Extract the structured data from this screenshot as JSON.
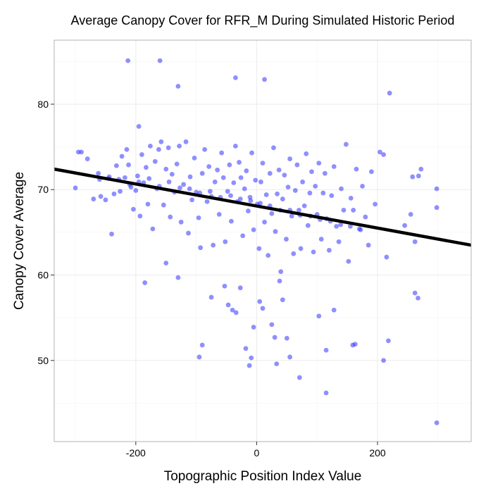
{
  "chart_data": {
    "type": "scatter",
    "title": "Average Canopy Cover for RFR_M During Simulated Historic Period",
    "xlabel": "Topographic Position Index Value",
    "ylabel": "Canopy Cover Average",
    "xlim": [
      -335,
      355
    ],
    "ylim": [
      40.5,
      87.5
    ],
    "x_ticks": [
      -200,
      0,
      200
    ],
    "y_ticks": [
      50,
      60,
      70,
      80
    ],
    "grid": true,
    "point_color": "#3333ff",
    "line_color": "#000000",
    "trendline": {
      "x": [
        -335,
        355
      ],
      "y": [
        72.4,
        63.5
      ]
    },
    "points": [
      [
        -213,
        85.1
      ],
      [
        -160,
        85.1
      ],
      [
        -35,
        83.1
      ],
      [
        13,
        82.9
      ],
      [
        -130,
        82.1
      ],
      [
        220,
        81.3
      ],
      [
        -195,
        77.4
      ],
      [
        -300,
        70.2
      ],
      [
        -295,
        74.4
      ],
      [
        -290,
        74.4
      ],
      [
        -280,
        73.6
      ],
      [
        -270,
        68.9
      ],
      [
        -262,
        71.9
      ],
      [
        -258,
        69.2
      ],
      [
        -250,
        68.8
      ],
      [
        -245,
        71.3
      ],
      [
        -240,
        64.8
      ],
      [
        -236,
        69.5
      ],
      [
        -232,
        72.8
      ],
      [
        -228,
        71.2
      ],
      [
        -223,
        73.9
      ],
      [
        -218,
        71.4
      ],
      [
        -215,
        74.7
      ],
      [
        -212,
        72.9
      ],
      [
        -208,
        70.3
      ],
      [
        -204,
        67.7
      ],
      [
        -200,
        69.9
      ],
      [
        -197,
        71.6
      ],
      [
        -193,
        66.9
      ],
      [
        -190,
        74.1
      ],
      [
        -187,
        70.8
      ],
      [
        -183,
        72.6
      ],
      [
        -180,
        68.3
      ],
      [
        -176,
        75.1
      ],
      [
        -172,
        65.4
      ],
      [
        -168,
        73.3
      ],
      [
        -165,
        70.1
      ],
      [
        -162,
        74.7
      ],
      [
        -158,
        75.6
      ],
      [
        -154,
        68.2
      ],
      [
        -150,
        72.4
      ],
      [
        -146,
        74.9
      ],
      [
        -143,
        66.8
      ],
      [
        -140,
        71.8
      ],
      [
        -136,
        69.7
      ],
      [
        -132,
        73.0
      ],
      [
        -128,
        75.1
      ],
      [
        -125,
        66.2
      ],
      [
        -121,
        70.6
      ],
      [
        -117,
        75.6
      ],
      [
        -113,
        64.9
      ],
      [
        -110,
        71.5
      ],
      [
        -107,
        68.8
      ],
      [
        -103,
        73.7
      ],
      [
        -100,
        69.7
      ],
      [
        -96,
        66.7
      ],
      [
        -93,
        63.2
      ],
      [
        -90,
        71.9
      ],
      [
        -86,
        74.7
      ],
      [
        -82,
        68.6
      ],
      [
        -79,
        72.7
      ],
      [
        -75,
        69.2
      ],
      [
        -72,
        63.5
      ],
      [
        -69,
        70.9
      ],
      [
        -65,
        72.3
      ],
      [
        -62,
        67.1
      ],
      [
        -58,
        74.3
      ],
      [
        -55,
        71.4
      ],
      [
        -52,
        63.9
      ],
      [
        -48,
        69.8
      ],
      [
        -45,
        72.9
      ],
      [
        -42,
        66.3
      ],
      [
        -38,
        70.8
      ],
      [
        -35,
        75.1
      ],
      [
        -32,
        68.6
      ],
      [
        -29,
        73.2
      ],
      [
        -26,
        71.4
      ],
      [
        -23,
        64.6
      ],
      [
        -20,
        70.1
      ],
      [
        -17,
        72.2
      ],
      [
        -14,
        67.5
      ],
      [
        -11,
        69.1
      ],
      [
        -8,
        74.3
      ],
      [
        -5,
        65.3
      ],
      [
        -2,
        71.1
      ],
      [
        1,
        68.3
      ],
      [
        4,
        63.1
      ],
      [
        7,
        70.9
      ],
      [
        10,
        73.1
      ],
      [
        13,
        66.2
      ],
      [
        16,
        69.4
      ],
      [
        19,
        62.3
      ],
      [
        22,
        71.9
      ],
      [
        25,
        67.2
      ],
      [
        28,
        74.9
      ],
      [
        31,
        65.1
      ],
      [
        34,
        69.5
      ],
      [
        37,
        72.3
      ],
      [
        40,
        60.4
      ],
      [
        43,
        68.9
      ],
      [
        46,
        71.7
      ],
      [
        49,
        64.2
      ],
      [
        52,
        70.3
      ],
      [
        55,
        73.6
      ],
      [
        58,
        66.9
      ],
      [
        61,
        62.5
      ],
      [
        64,
        69.9
      ],
      [
        67,
        72.9
      ],
      [
        70,
        67.6
      ],
      [
        73,
        63.1
      ],
      [
        76,
        70.9
      ],
      [
        79,
        68.1
      ],
      [
        82,
        74.2
      ],
      [
        85,
        65.8
      ],
      [
        88,
        69.6
      ],
      [
        91,
        72.1
      ],
      [
        94,
        62.7
      ],
      [
        97,
        70.4
      ],
      [
        100,
        67.1
      ],
      [
        103,
        73.1
      ],
      [
        107,
        64.2
      ],
      [
        110,
        69.6
      ],
      [
        113,
        71.9
      ],
      [
        116,
        66.6
      ],
      [
        120,
        62.9
      ],
      [
        124,
        69.3
      ],
      [
        128,
        72.7
      ],
      [
        132,
        65.7
      ],
      [
        136,
        63.9
      ],
      [
        140,
        70.1
      ],
      [
        144,
        67.6
      ],
      [
        148,
        75.3
      ],
      [
        152,
        61.6
      ],
      [
        156,
        69.0
      ],
      [
        160,
        67.6
      ],
      [
        165,
        72.4
      ],
      [
        170,
        65.4
      ],
      [
        175,
        70.4
      ],
      [
        180,
        66.8
      ],
      [
        185,
        63.5
      ],
      [
        190,
        72.1
      ],
      [
        196,
        68.3
      ],
      [
        204,
        74.4
      ],
      [
        210,
        74.1
      ],
      [
        215,
        62.1
      ],
      [
        245,
        65.8
      ],
      [
        255,
        67.1
      ],
      [
        258,
        71.5
      ],
      [
        262,
        63.9
      ],
      [
        268,
        71.6
      ],
      [
        272,
        72.4
      ],
      [
        298,
        70.1
      ],
      [
        298,
        67.9
      ],
      [
        -185,
        59.1
      ],
      [
        -150,
        61.4
      ],
      [
        -130,
        59.7
      ],
      [
        -95,
        50.4
      ],
      [
        -90,
        51.8
      ],
      [
        -75,
        57.4
      ],
      [
        -53,
        58.7
      ],
      [
        -47,
        56.5
      ],
      [
        -40,
        55.9
      ],
      [
        -34,
        55.6
      ],
      [
        -27,
        58.5
      ],
      [
        -18,
        51.4
      ],
      [
        -12,
        49.4
      ],
      [
        -9,
        50.3
      ],
      [
        -5,
        53.9
      ],
      [
        5,
        56.9
      ],
      [
        10,
        56.1
      ],
      [
        25,
        54.2
      ],
      [
        30,
        52.7
      ],
      [
        33,
        49.6
      ],
      [
        38,
        59.3
      ],
      [
        43,
        57.1
      ],
      [
        50,
        52.6
      ],
      [
        55,
        50.4
      ],
      [
        71,
        48.0
      ],
      [
        103,
        55.2
      ],
      [
        115,
        51.2
      ],
      [
        115,
        46.2
      ],
      [
        128,
        55.9
      ],
      [
        159,
        51.8
      ],
      [
        163,
        51.9
      ],
      [
        210,
        50.0
      ],
      [
        218,
        52.3
      ],
      [
        262,
        57.9
      ],
      [
        267,
        57.3
      ],
      [
        298,
        42.7
      ],
      [
        -260,
        71.2
      ],
      [
        -244,
        71.5
      ],
      [
        -226,
        69.8
      ],
      [
        -210,
        70.6
      ],
      [
        -195,
        70.9
      ],
      [
        -178,
        71.3
      ],
      [
        -161,
        70.4
      ],
      [
        -145,
        70.9
      ],
      [
        -127,
        70.2
      ],
      [
        -111,
        70.1
      ],
      [
        -94,
        69.6
      ],
      [
        -77,
        69.8
      ],
      [
        -60,
        69.1
      ],
      [
        -43,
        69.3
      ],
      [
        -27,
        68.9
      ],
      [
        -10,
        68.7
      ],
      [
        6,
        68.4
      ],
      [
        22,
        68.1
      ],
      [
        39,
        67.6
      ],
      [
        55,
        67.6
      ],
      [
        72,
        67.0
      ],
      [
        89,
        66.9
      ],
      [
        105,
        66.5
      ],
      [
        122,
        66.3
      ],
      [
        139,
        65.9
      ],
      [
        155,
        65.7
      ],
      [
        172,
        65.3
      ]
    ]
  }
}
